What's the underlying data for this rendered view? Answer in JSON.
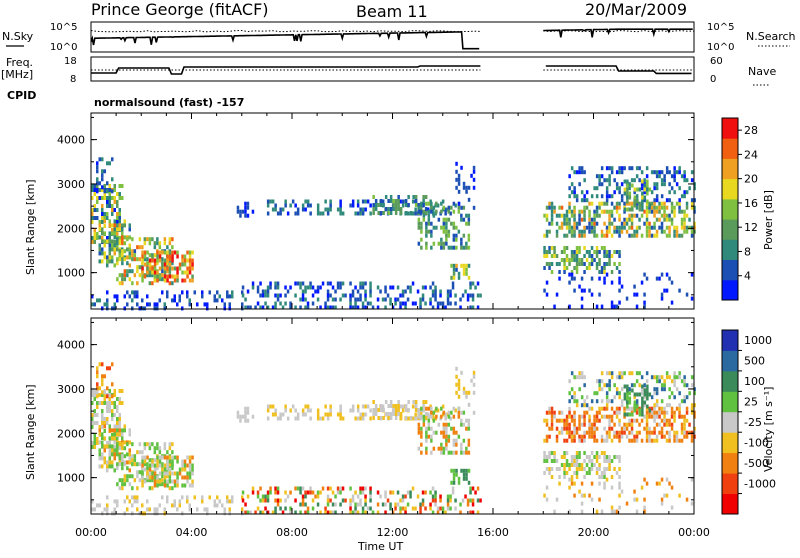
{
  "header": {
    "title": "Prince George (fitACF)",
    "beam": "Beam 11",
    "date": "20/Mar/2009"
  },
  "top_labels": {
    "nsky": "N.Sky",
    "nsearch": "N.Search",
    "freq_l1": "Freq.",
    "freq_l2": "[MHz]",
    "nave": "Nave",
    "cpid": "CPID",
    "cpid_value": "normalsound (fast) -157"
  },
  "nsky_ticks": [
    "10^5",
    "10^0"
  ],
  "nsearch_ticks": [
    "10^5",
    "10^0"
  ],
  "freq_ticks": [
    "18",
    "8"
  ],
  "nave_ticks": [
    "60",
    "0"
  ],
  "colors": {
    "power": [
      "#0018ff",
      "#1b4fb4",
      "#2f8a7c",
      "#5a9a5a",
      "#80c040",
      "#e8d820",
      "#f0a020",
      "#f06010",
      "#f01010"
    ],
    "velocity": [
      "#2030b0",
      "#2a6aa0",
      "#3a8a5a",
      "#60c040",
      "#c8c8c8",
      "#f0c020",
      "#f08010",
      "#f04010",
      "#f00000"
    ]
  },
  "chart_data": [
    {
      "type": "heatmap",
      "name": "power-panel",
      "xlabel": "",
      "ylabel": "Slant Range [km]",
      "xlim": [
        "00:00",
        "24:00"
      ],
      "ylim": [
        180,
        4600
      ],
      "x_ticks": [
        "00:00",
        "04:00",
        "08:00",
        "12:00",
        "16:00",
        "20:00",
        "00:00"
      ],
      "y_ticks": [
        1000,
        2000,
        3000,
        4000
      ],
      "colorbar": {
        "label": "Power [dB]",
        "ticks": [
          4,
          8,
          12,
          16,
          20,
          24,
          28
        ],
        "range": [
          0,
          30
        ]
      },
      "data_gap_hours": [
        15.5,
        18.0
      ]
    },
    {
      "type": "heatmap",
      "name": "velocity-panel",
      "xlabel": "Time UT",
      "ylabel": "Slant Range [km]",
      "xlim": [
        "00:00",
        "24:00"
      ],
      "ylim": [
        180,
        4600
      ],
      "x_ticks": [
        "00:00",
        "04:00",
        "08:00",
        "12:00",
        "16:00",
        "20:00",
        "00:00"
      ],
      "y_ticks": [
        1000,
        2000,
        3000,
        4000
      ],
      "colorbar": {
        "label": "Velocity [m s⁻¹]",
        "ticks": [
          "1000",
          "500",
          "100",
          "25",
          "-25",
          "-100",
          "-500",
          "-1000"
        ]
      },
      "data_gap_hours": [
        15.5,
        18.0
      ]
    }
  ]
}
